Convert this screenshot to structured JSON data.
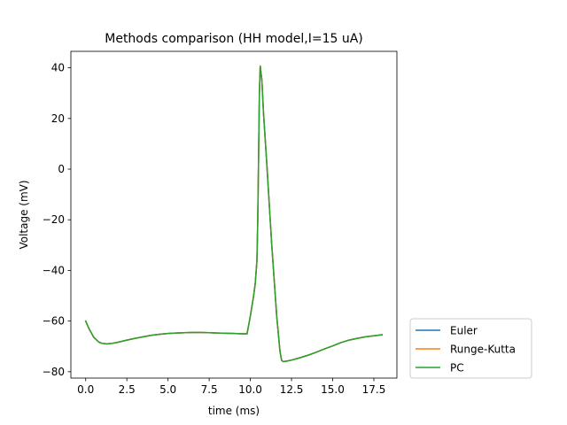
{
  "chart_data": {
    "type": "line",
    "title": "Methods comparison (HH model,I=15 uA)",
    "xlabel": "time (ms)",
    "ylabel": "Voltage (mV)",
    "xlim": [
      -0.9,
      18.9
    ],
    "ylim": [
      -82.5,
      46.5
    ],
    "xticks": [
      0.0,
      2.5,
      5.0,
      7.5,
      10.0,
      12.5,
      15.0,
      17.5
    ],
    "xtick_labels": [
      "0.0",
      "2.5",
      "5.0",
      "7.5",
      "10.0",
      "12.5",
      "15.0",
      "17.5"
    ],
    "yticks": [
      -80,
      -60,
      -40,
      -20,
      0,
      20,
      40
    ],
    "ytick_labels": [
      "−80",
      "−60",
      "−40",
      "−20",
      "0",
      "20",
      "40"
    ],
    "grid": false,
    "legend_position": "outside-lower-right",
    "x": [
      0.0,
      0.2,
      0.5,
      0.8,
      1.0,
      1.3,
      1.6,
      2.0,
      2.5,
      3.0,
      3.5,
      4.0,
      4.5,
      5.0,
      5.5,
      6.0,
      6.5,
      7.0,
      7.5,
      8.0,
      8.5,
      9.0,
      9.5,
      9.8,
      10.0,
      10.2,
      10.3,
      10.4,
      10.45,
      10.5,
      10.55,
      10.6,
      10.7,
      10.8,
      11.0,
      11.3,
      11.6,
      11.8,
      11.9,
      12.0,
      12.2,
      12.5,
      13.0,
      13.5,
      14.0,
      14.5,
      15.0,
      15.5,
      16.0,
      16.5,
      17.0,
      17.5,
      18.0
    ],
    "series": [
      {
        "name": "Euler",
        "color": "#1f77b4",
        "values": [
          -60.0,
          -63.0,
          -66.5,
          -68.3,
          -68.8,
          -69.0,
          -68.8,
          -68.3,
          -67.5,
          -66.8,
          -66.2,
          -65.6,
          -65.2,
          -64.9,
          -64.7,
          -64.6,
          -64.5,
          -64.5,
          -64.6,
          -64.7,
          -64.8,
          -64.9,
          -65.0,
          -65.0,
          -58.0,
          -50.0,
          -45.0,
          -36.0,
          -20.0,
          5.0,
          30.0,
          40.7,
          35.0,
          22.0,
          2.0,
          -30.0,
          -58.0,
          -72.0,
          -75.5,
          -76.0,
          -75.8,
          -75.4,
          -74.5,
          -73.5,
          -72.3,
          -71.0,
          -69.8,
          -68.5,
          -67.5,
          -66.8,
          -66.2,
          -65.8,
          -65.4
        ]
      },
      {
        "name": "Runge-Kutta",
        "color": "#ff7f0e",
        "values": [
          -60.0,
          -63.0,
          -66.5,
          -68.3,
          -68.8,
          -69.0,
          -68.8,
          -68.3,
          -67.5,
          -66.8,
          -66.2,
          -65.6,
          -65.2,
          -64.9,
          -64.7,
          -64.6,
          -64.5,
          -64.5,
          -64.6,
          -64.7,
          -64.8,
          -64.9,
          -65.0,
          -65.0,
          -58.0,
          -50.0,
          -45.0,
          -36.0,
          -20.0,
          5.0,
          30.0,
          40.7,
          35.0,
          22.0,
          2.0,
          -30.0,
          -58.0,
          -72.0,
          -75.5,
          -76.0,
          -75.8,
          -75.4,
          -74.5,
          -73.5,
          -72.3,
          -71.0,
          -69.8,
          -68.5,
          -67.5,
          -66.8,
          -66.2,
          -65.8,
          -65.4
        ]
      },
      {
        "name": "PC",
        "color": "#2ca02c",
        "values": [
          -60.0,
          -63.0,
          -66.5,
          -68.3,
          -68.8,
          -69.0,
          -68.8,
          -68.3,
          -67.5,
          -66.8,
          -66.2,
          -65.6,
          -65.2,
          -64.9,
          -64.7,
          -64.6,
          -64.5,
          -64.5,
          -64.6,
          -64.7,
          -64.8,
          -64.9,
          -65.0,
          -65.0,
          -58.0,
          -50.0,
          -45.0,
          -36.0,
          -20.0,
          5.0,
          30.0,
          40.7,
          35.0,
          22.0,
          2.0,
          -30.0,
          -58.0,
          -72.0,
          -75.5,
          -76.0,
          -75.8,
          -75.4,
          -74.5,
          -73.5,
          -72.3,
          -71.0,
          -69.8,
          -68.5,
          -67.5,
          -66.8,
          -66.2,
          -65.8,
          -65.4
        ]
      }
    ]
  }
}
